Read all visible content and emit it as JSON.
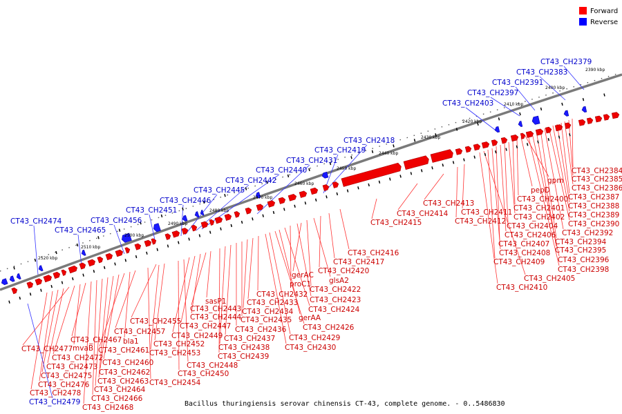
{
  "legend": {
    "forward_label": "Forward",
    "reverse_label": "Reverse",
    "forward_color": "#ff0000",
    "reverse_color": "#0000ff"
  },
  "caption": "Bacillus thuringiensis serovar chinensis CT-43, complete genome. - 0..5486830",
  "kbp_ticks": [
    "2390 kbp",
    "2400 kbp",
    "2410 kbp",
    "2420 kbp",
    "2430 kbp",
    "2440 kbp",
    "2450 kbp",
    "2460 kbp",
    "2470 kbp",
    "2480 kbp",
    "2490 kbp",
    "2500 kbp",
    "2510 kbp",
    "2520 kbp"
  ],
  "forward_labels": [
    "CT43_CH2384",
    "CT43_CH2385",
    "CT43_CH2386",
    "CT43_CH2387",
    "CT43_CH2388",
    "CT43_CH2389",
    "CT43_CH2390",
    "CT43_CH2392",
    "CT43_CH2394",
    "CT43_CH2395",
    "CT43_CH2396",
    "CT43_CH2398",
    "gpm",
    "pepD",
    "CT43_CH2400",
    "CT43_CH2401",
    "CT43_CH2402",
    "CT43_CH2404",
    "CT43_CH2406",
    "CT43_CH2407",
    "CT43_CH2408",
    "CT43_CH2409",
    "CT43_CH2405",
    "CT43_CH2410",
    "CT43_CH2413",
    "CT43_CH2411",
    "CT43_CH2412",
    "CT43_CH2414",
    "CT43_CH2415",
    "CT43_CH2416",
    "CT43_CH2417",
    "gerAC",
    "CT43_CH2420",
    "proC1",
    "glsA2",
    "CT43_CH2422",
    "CT43_CH2423",
    "CT43_CH2424",
    "gerAA",
    "CT43_CH2426",
    "CT43_CH2429",
    "CT43_CH2430",
    "CT43_CH2432",
    "CT43_CH2433",
    "CT43_CH2434",
    "CT43_CH2435",
    "CT43_CH2436",
    "CT43_CH2437",
    "CT43_CH2438",
    "CT43_CH2439",
    "sasP1",
    "CT43_CH2443",
    "CT43_CH2444",
    "CT43_CH2447",
    "CT43_CH2449",
    "CT43_CH2448",
    "CT43_CH2450",
    "CT43_CH2455",
    "CT43_CH2452",
    "CT43_CH2453",
    "CT43_CH2454",
    "CT43_CH2457",
    "bla1",
    "CT43_CH2461",
    "CT43_CH2460",
    "CT43_CH2462",
    "CT43_CH2463",
    "CT43_CH2464",
    "CT43_CH2466",
    "CT43_CH2468",
    "CT43_CH2467",
    "mvaB",
    "CT43_CH2472",
    "CT43_CH2477",
    "CT43_CH2473",
    "CT43_CH2475",
    "CT43_CH2476",
    "CT43_CH2478"
  ],
  "reverse_labels": [
    "CT43_CH2379",
    "CT43_CH2383",
    "CT43_CH2391",
    "CT43_CH2397",
    "CT43_CH2403",
    "CT43_CH2418",
    "CT43_CH2419",
    "CT43_CH2431",
    "CT43_CH2440",
    "CT43_CH2442",
    "CT43_CH2445",
    "CT43_CH2446",
    "CT43_CH2451",
    "CT43_CH2456",
    "CT43_CH2465",
    "CT43_CH2474",
    "CT43_CH2479"
  ]
}
